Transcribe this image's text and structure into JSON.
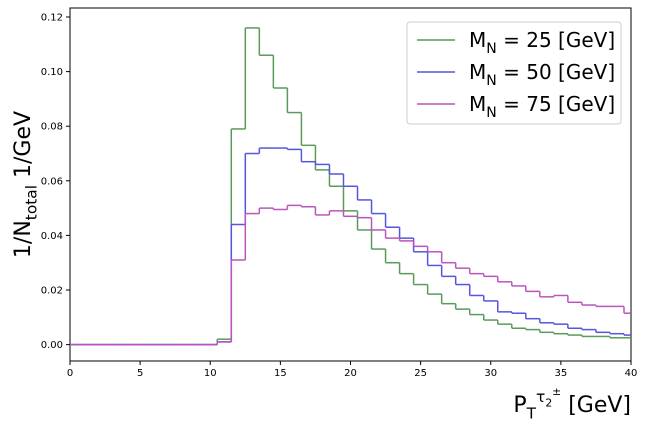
{
  "chart_data": {
    "type": "step-histogram",
    "ylabel": "1/N_{total} 1/GeV",
    "xlabel": "P_T^{τ_2^±}  [GeV]",
    "bins": [
      -0.5,
      0.5,
      1.5,
      2.5,
      3.5,
      4.5,
      5.5,
      6.5,
      7.5,
      8.5,
      9.5,
      10.5,
      11.5,
      12.5,
      13.5,
      14.5,
      15.5,
      16.5,
      17.5,
      18.5,
      19.5,
      20.5,
      21.5,
      22.5,
      23.5,
      24.5,
      25.5,
      26.5,
      27.5,
      28.5,
      29.5,
      30.5,
      31.5,
      32.5,
      33.5,
      34.5,
      35.5,
      36.5,
      37.5,
      38.5,
      39.5,
      40.5
    ],
    "series": [
      {
        "name": "M_N = 25 [GeV]",
        "color": "#5a9a5a",
        "values": [
          0,
          0,
          0,
          0,
          0,
          0,
          0,
          0,
          0,
          0,
          0,
          0.002,
          0.079,
          0.116,
          0.106,
          0.094,
          0.085,
          0.073,
          0.064,
          0.058,
          0.049,
          0.042,
          0.035,
          0.03,
          0.026,
          0.022,
          0.0185,
          0.015,
          0.013,
          0.011,
          0.009,
          0.0075,
          0.006,
          0.0055,
          0.0045,
          0.004,
          0.0035,
          0.003,
          0.003,
          0.0025,
          0.0025
        ]
      },
      {
        "name": "M_N = 50 [GeV]",
        "color": "#5555dd",
        "values": [
          0,
          0,
          0,
          0,
          0,
          0,
          0,
          0,
          0,
          0,
          0,
          0.001,
          0.044,
          0.07,
          0.072,
          0.072,
          0.0715,
          0.067,
          0.066,
          0.0625,
          0.058,
          0.053,
          0.048,
          0.043,
          0.039,
          0.034,
          0.029,
          0.025,
          0.022,
          0.018,
          0.016,
          0.012,
          0.0115,
          0.0095,
          0.008,
          0.0075,
          0.006,
          0.0055,
          0.0045,
          0.004,
          0.0035
        ]
      },
      {
        "name": "M_N = 75 [GeV]",
        "color": "#bb55bb",
        "values": [
          0,
          0,
          0,
          0,
          0,
          0,
          0,
          0,
          0,
          0,
          0,
          0.001,
          0.031,
          0.048,
          0.05,
          0.0495,
          0.051,
          0.0505,
          0.0475,
          0.049,
          0.047,
          0.0465,
          0.042,
          0.039,
          0.038,
          0.036,
          0.034,
          0.03,
          0.028,
          0.026,
          0.025,
          0.023,
          0.0215,
          0.0195,
          0.0175,
          0.018,
          0.0155,
          0.0145,
          0.014,
          0.014,
          0.0115
        ]
      }
    ],
    "xlim": [
      0,
      40
    ],
    "xticks": [
      0,
      5,
      10,
      15,
      20,
      25,
      30,
      35,
      40
    ],
    "ylim": [
      -0.006,
      0.1233
    ],
    "yticks": [
      {
        "value": 0,
        "label": "0.00"
      },
      {
        "value": 0.02,
        "label": "0.02"
      },
      {
        "value": 0.04,
        "label": "0.04"
      },
      {
        "value": 0.06,
        "label": "0.06"
      },
      {
        "value": 0.08,
        "label": "0.08"
      },
      {
        "value": 0.1,
        "label": "0.10"
      },
      {
        "value": 0.12,
        "label": "0.12"
      }
    ],
    "legend": "upper right",
    "grid": false
  }
}
